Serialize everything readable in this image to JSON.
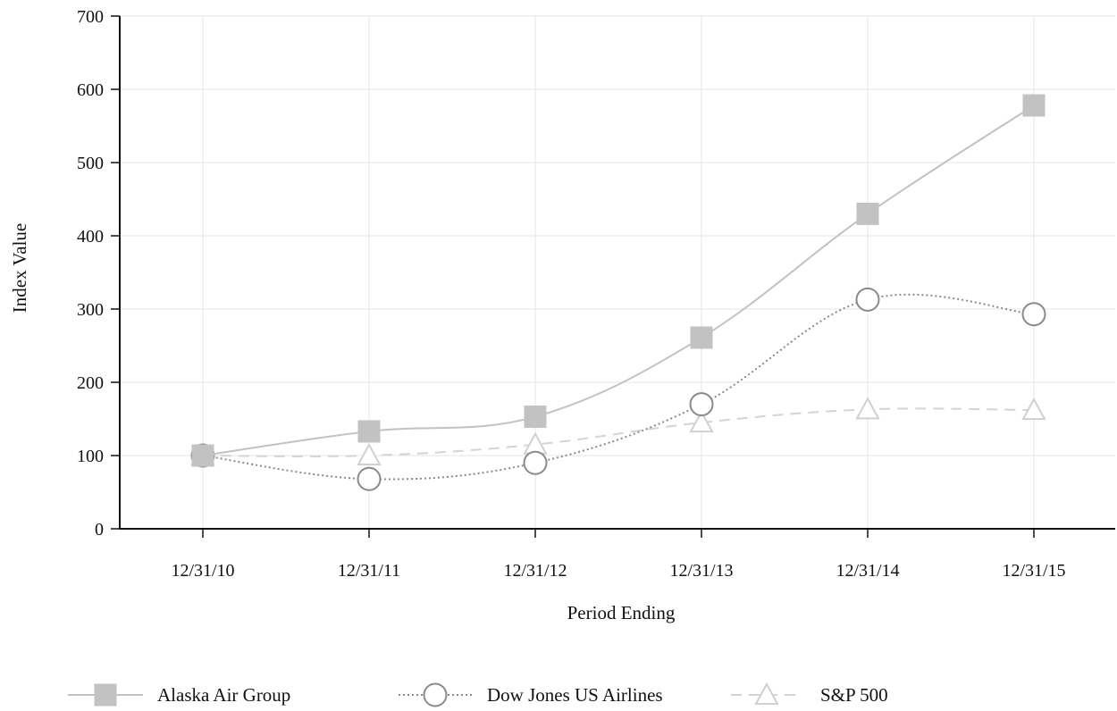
{
  "chart_data": {
    "type": "line",
    "title": "",
    "xlabel": "Period Ending",
    "ylabel": "Index Value",
    "categories": [
      "12/31/10",
      "12/31/11",
      "12/31/12",
      "12/31/13",
      "12/31/14",
      "12/31/15"
    ],
    "ylim": [
      0,
      700
    ],
    "yticks": [
      0,
      100,
      200,
      300,
      400,
      500,
      600,
      700
    ],
    "grid": true,
    "legend_position": "bottom",
    "series": [
      {
        "name": "Alaska Air Group",
        "marker": "square",
        "line_style": "solid",
        "color": "#c2c2c2",
        "values": [
          100,
          133,
          153,
          261,
          430,
          578
        ]
      },
      {
        "name": "Dow Jones US Airlines",
        "marker": "circle",
        "line_style": "dotted",
        "color": "#8a8a8a",
        "values": [
          100,
          68,
          90,
          170,
          313,
          293
        ]
      },
      {
        "name": "S&P 500",
        "marker": "triangle",
        "line_style": "dashed",
        "color": "#d4d4d4",
        "values": [
          100,
          100,
          115,
          145,
          163,
          162
        ]
      }
    ]
  }
}
